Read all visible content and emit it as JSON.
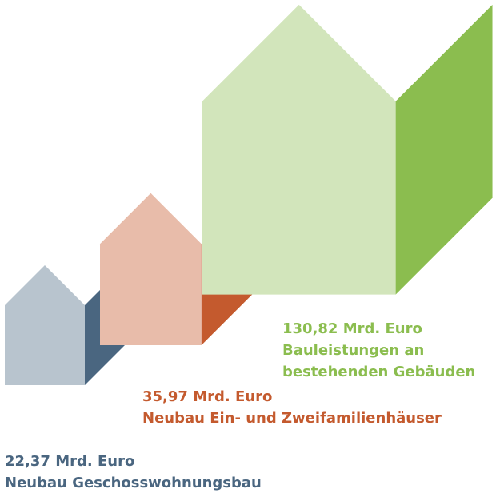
{
  "chart_data": {
    "type": "house",
    "categories": [
      "Neubau Geschosswohnungsbau",
      "Neubau Ein- und Zweifamilienhäuser",
      "Bauleistungen an bestehenden Gebäuden"
    ],
    "values": [
      22.37,
      35.97,
      130.82
    ],
    "value_labels": [
      "22,37 Mrd. Euro",
      "35,97 Mrd. Euro",
      "130,82 Mrd. Euro"
    ],
    "colors": [
      "#b8c4ce",
      "#e8bcaa",
      "#d2e5bb"
    ],
    "side_colors": [
      "#4a6680",
      "#c45a2e",
      "#8bbd4f"
    ]
  }
}
